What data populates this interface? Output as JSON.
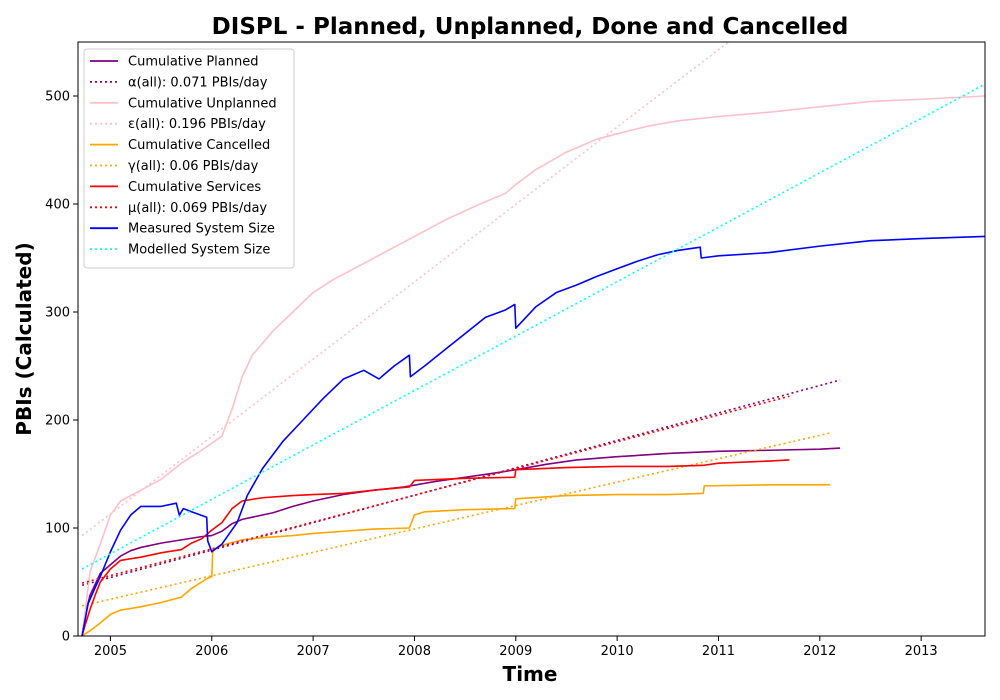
{
  "chart_data": {
    "type": "line",
    "title": "DISPL - Planned, Unplanned, Done  and Cancelled",
    "xlabel": "Time",
    "ylabel": "PBIs (Calculated)",
    "xlim": [
      2004.68,
      2013.63
    ],
    "ylim": [
      0,
      550
    ],
    "x_ticks": [
      2005,
      2006,
      2007,
      2008,
      2009,
      2010,
      2011,
      2012,
      2013
    ],
    "y_ticks": [
      0,
      100,
      200,
      300,
      400,
      500
    ],
    "grid": false,
    "legend_position": "top-left",
    "series": [
      {
        "name": "Cumulative Planned",
        "color": "#800080",
        "style": "solid",
        "x": [
          2004.72,
          2004.75,
          2004.8,
          2004.85,
          2004.9,
          2005.0,
          2005.1,
          2005.2,
          2005.3,
          2005.5,
          2005.7,
          2005.9,
          2006.0,
          2006.1,
          2006.2,
          2006.3,
          2006.4,
          2006.6,
          2006.8,
          2007.0,
          2007.3,
          2007.6,
          2007.9,
          2008.2,
          2008.5,
          2008.8,
          2009.0,
          2009.3,
          2009.6,
          2010.0,
          2010.5,
          2011.0,
          2011.5,
          2012.0,
          2012.2
        ],
        "y": [
          0,
          20,
          38,
          48,
          58,
          66,
          74,
          79,
          82,
          86,
          89,
          92,
          93,
          97,
          104,
          108,
          110,
          114,
          120,
          125,
          131,
          135,
          138,
          143,
          147,
          151,
          154,
          159,
          163,
          166,
          169,
          171,
          172,
          173,
          174
        ]
      },
      {
        "name": "α(all): 0.071 PBIs/day",
        "color": "#800080",
        "style": "dotted",
        "x": [
          2004.72,
          2012.2
        ],
        "y": [
          47,
          237
        ]
      },
      {
        "name": "Cumulative Unplanned",
        "color": "#ffc0cb",
        "style": "solid",
        "x": [
          2004.72,
          2004.8,
          2004.9,
          2005.0,
          2005.1,
          2005.3,
          2005.5,
          2005.7,
          2005.9,
          2006.1,
          2006.2,
          2006.3,
          2006.4,
          2006.6,
          2006.8,
          2007.0,
          2007.2,
          2007.5,
          2007.8,
          2008.0,
          2008.3,
          2008.6,
          2008.9,
          2009.0,
          2009.2,
          2009.5,
          2009.8,
          2010.0,
          2010.3,
          2010.6,
          2011.0,
          2011.5,
          2012.0,
          2012.5,
          2013.0,
          2013.63
        ],
        "y": [
          0,
          60,
          85,
          112,
          125,
          135,
          145,
          160,
          172,
          185,
          210,
          240,
          260,
          282,
          300,
          318,
          330,
          345,
          360,
          370,
          385,
          398,
          410,
          418,
          432,
          448,
          460,
          465,
          472,
          477,
          481,
          485,
          490,
          495,
          497,
          500
        ]
      },
      {
        "name": "ε(all): 0.196 PBIs/day",
        "color": "#ffc0cb",
        "style": "dotted",
        "x": [
          2004.72,
          2011.1
        ],
        "y": [
          93,
          550
        ]
      },
      {
        "name": "Cumulative Cancelled",
        "color": "#ffa500",
        "style": "solid",
        "x": [
          2004.72,
          2004.8,
          2004.9,
          2005.0,
          2005.1,
          2005.3,
          2005.5,
          2005.7,
          2005.8,
          2005.95,
          2006.0,
          2006.01,
          2006.1,
          2006.3,
          2006.5,
          2006.8,
          2007.0,
          2007.3,
          2007.6,
          2007.95,
          2008.0,
          2008.1,
          2008.5,
          2008.99,
          2009.0,
          2009.5,
          2010.0,
          2010.5,
          2010.85,
          2010.86,
          2011.5,
          2012.1
        ],
        "y": [
          0,
          5,
          12,
          20,
          24,
          27,
          31,
          36,
          44,
          53,
          55,
          80,
          84,
          89,
          91,
          93,
          95,
          97,
          99,
          100,
          112,
          115,
          117,
          118,
          127,
          130,
          131,
          131,
          132,
          139,
          140,
          140
        ]
      },
      {
        "name": "γ(all): 0.06 PBIs/day",
        "color": "#ffa500",
        "style": "dotted",
        "x": [
          2004.72,
          2012.1
        ],
        "y": [
          28,
          188
        ]
      },
      {
        "name": "Cumulative Services",
        "color": "#ff0000",
        "style": "solid",
        "x": [
          2004.72,
          2004.75,
          2004.8,
          2004.85,
          2004.9,
          2005.0,
          2005.1,
          2005.3,
          2005.5,
          2005.7,
          2005.8,
          2005.9,
          2006.0,
          2006.1,
          2006.2,
          2006.3,
          2006.5,
          2006.8,
          2007.0,
          2007.3,
          2007.6,
          2007.95,
          2008.0,
          2008.5,
          2008.99,
          2009.0,
          2009.5,
          2010.0,
          2010.5,
          2010.85,
          2011.0,
          2011.5,
          2011.7
        ],
        "y": [
          0,
          10,
          25,
          38,
          50,
          62,
          70,
          73,
          77,
          80,
          86,
          90,
          98,
          105,
          118,
          125,
          128,
          130,
          131,
          132,
          135,
          138,
          144,
          146,
          147,
          154,
          156,
          157,
          157,
          158,
          160,
          162,
          163
        ]
      },
      {
        "name": "μ(all): 0.069 PBIs/day",
        "color": "#ff0000",
        "style": "dotted",
        "x": [
          2004.72,
          2011.7
        ],
        "y": [
          49,
          222
        ]
      },
      {
        "name": "Measured System Size",
        "color": "#0000ff",
        "style": "solid",
        "x": [
          2004.72,
          2004.78,
          2004.85,
          2004.9,
          2005.0,
          2005.1,
          2005.2,
          2005.3,
          2005.5,
          2005.65,
          2005.68,
          2005.72,
          2005.8,
          2005.95,
          2005.96,
          2006.0,
          2006.1,
          2006.25,
          2006.35,
          2006.5,
          2006.7,
          2006.9,
          2007.1,
          2007.3,
          2007.5,
          2007.65,
          2007.8,
          2007.95,
          2007.96,
          2008.1,
          2008.3,
          2008.5,
          2008.7,
          2008.9,
          2008.99,
          2009.0,
          2009.2,
          2009.4,
          2009.6,
          2009.8,
          2010.0,
          2010.2,
          2010.4,
          2010.6,
          2010.82,
          2010.83,
          2011.0,
          2011.5,
          2012.0,
          2012.5,
          2013.0,
          2013.63
        ],
        "y": [
          0,
          30,
          45,
          55,
          78,
          98,
          112,
          120,
          120,
          123,
          112,
          118,
          115,
          110,
          88,
          78,
          85,
          105,
          130,
          155,
          180,
          200,
          220,
          238,
          246,
          238,
          250,
          260,
          240,
          250,
          265,
          280,
          295,
          302,
          307,
          285,
          305,
          318,
          325,
          333,
          340,
          347,
          353,
          357,
          360,
          350,
          352,
          355,
          361,
          366,
          368,
          370
        ]
      },
      {
        "name": "Modelled System Size",
        "color": "#00ffff",
        "style": "dotted",
        "x": [
          2004.72,
          2013.63
        ],
        "y": [
          62,
          511
        ]
      }
    ]
  }
}
